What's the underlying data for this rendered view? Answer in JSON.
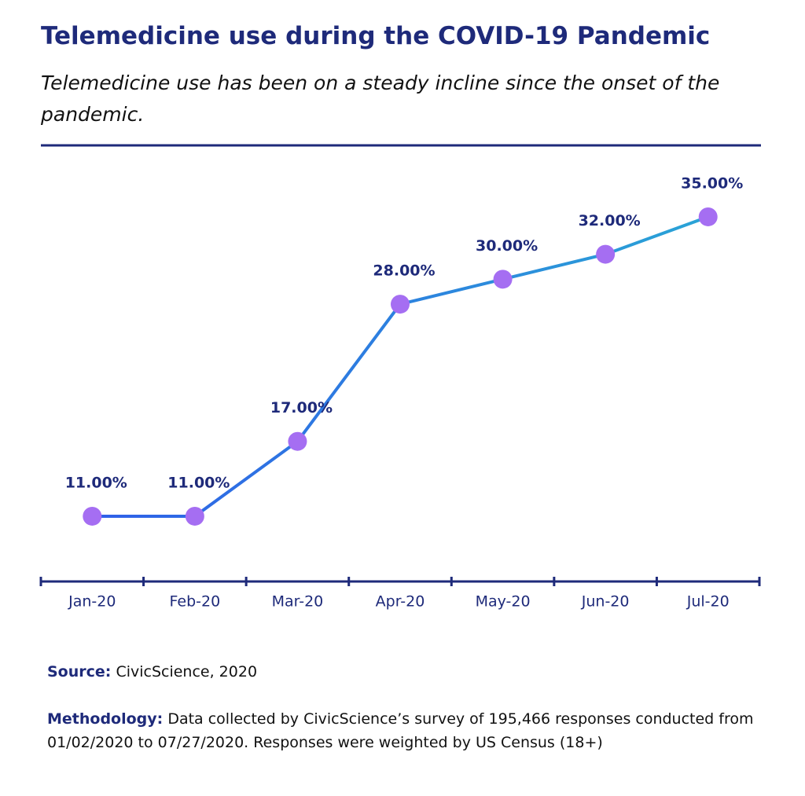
{
  "chart_data": {
    "type": "line",
    "title": "Telemedicine use during the COVID-19 Pandemic",
    "subtitle": "Telemedicine use has been on a steady incline since the onset of the pandemic.",
    "categories": [
      "Jan-20",
      "Feb-20",
      "Mar-20",
      "Apr-20",
      "May-20",
      "Jun-20",
      "Jul-20"
    ],
    "series": [
      {
        "name": "Telemedicine use",
        "color": "#a56ef2",
        "values": [
          11,
          11,
          17,
          28,
          30,
          32,
          35
        ],
        "value_labels": [
          "11.00%",
          "11.00%",
          "17.00%",
          "28.00%",
          "30.00%",
          "32.00%",
          "35.00%"
        ]
      }
    ],
    "source_label": "Source:",
    "source_text": "CivicScience, 2020",
    "methodology_label": "Methodology:",
    "methodology_text": "Data collected by CivicScience’s survey of 195,466 responses conducted from 01/02/2020 to 07/27/2020. Responses were  weighted by US Census (18+)"
  }
}
